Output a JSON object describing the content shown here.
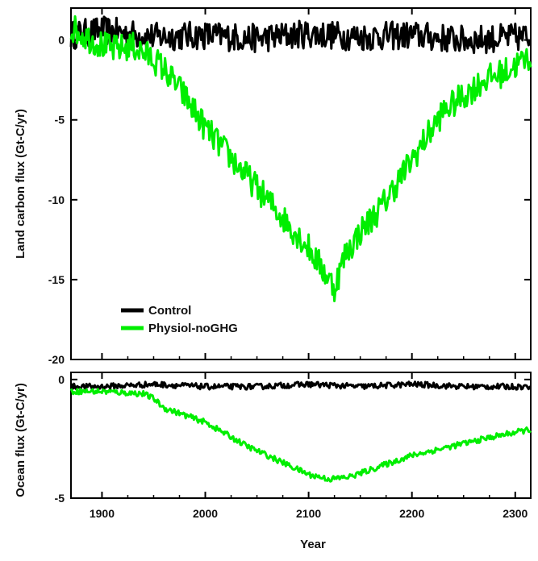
{
  "chart_data": [
    {
      "type": "line",
      "panel": "land",
      "xlabel": "",
      "ylabel": "Land carbon flux (Gt-C/yr)",
      "xlim": [
        1870,
        2315
      ],
      "ylim": [
        -20,
        2
      ],
      "x_ticks": [
        1900,
        2000,
        2100,
        2200,
        2300
      ],
      "y_ticks": [
        0,
        -5,
        -10,
        -15,
        -20
      ],
      "y_tick_labels": [
        "0",
        "-5",
        "-10",
        "-15",
        "-20"
      ],
      "legend": "bottom-left",
      "legend_entries": [
        "Control",
        "Physiol-noGHG"
      ],
      "series": [
        {
          "name": "Control",
          "color": "#000000",
          "x": [
            1870,
            1900,
            1950,
            2000,
            2050,
            2100,
            2150,
            2200,
            2250,
            2315
          ],
          "y": [
            0.3,
            0.6,
            0.2,
            0.3,
            0.1,
            0.4,
            0.2,
            0.3,
            0.0,
            0.2
          ]
        },
        {
          "name": "Physiol-noGHG",
          "color": "#00ee00",
          "x": [
            1870,
            1890,
            1910,
            1930,
            1950,
            1960,
            1980,
            2000,
            2020,
            2040,
            2060,
            2080,
            2100,
            2115,
            2125,
            2135,
            2150,
            2170,
            2190,
            2210,
            2230,
            2250,
            2270,
            2290,
            2315
          ],
          "y": [
            0.8,
            0.0,
            -0.6,
            -0.4,
            -1.2,
            -1.8,
            -3.5,
            -5.5,
            -7.0,
            -8.5,
            -10.0,
            -11.5,
            -13.0,
            -14.5,
            -15.5,
            -13.5,
            -12.0,
            -10.5,
            -8.5,
            -6.5,
            -4.5,
            -3.5,
            -2.5,
            -2.0,
            -1.0
          ]
        }
      ]
    },
    {
      "type": "line",
      "panel": "ocean",
      "xlabel": "Year",
      "ylabel": "Ocean flux (Gt-C/yr)",
      "xlim": [
        1870,
        2315
      ],
      "ylim": [
        -5,
        0.3
      ],
      "x_ticks": [
        1900,
        2000,
        2100,
        2200,
        2300
      ],
      "x_tick_labels": [
        "1900",
        "2000",
        "2100",
        "2200",
        "2300"
      ],
      "y_ticks": [
        0,
        -5
      ],
      "y_tick_labels": [
        "0",
        "-5"
      ],
      "series": [
        {
          "name": "Control",
          "color": "#000000",
          "x": [
            1870,
            1900,
            1950,
            2000,
            2050,
            2100,
            2150,
            2200,
            2250,
            2315
          ],
          "y": [
            -0.3,
            -0.3,
            -0.2,
            -0.3,
            -0.3,
            -0.2,
            -0.3,
            -0.2,
            -0.3,
            -0.3
          ]
        },
        {
          "name": "Physiol-noGHG",
          "color": "#00ee00",
          "x": [
            1870,
            1900,
            1940,
            1950,
            1960,
            2000,
            2040,
            2080,
            2100,
            2120,
            2140,
            2160,
            2200,
            2240,
            2280,
            2315
          ],
          "y": [
            -0.5,
            -0.5,
            -0.6,
            -0.8,
            -1.2,
            -1.8,
            -2.8,
            -3.6,
            -4.0,
            -4.2,
            -4.1,
            -3.8,
            -3.2,
            -2.8,
            -2.4,
            -2.1
          ]
        }
      ]
    }
  ]
}
